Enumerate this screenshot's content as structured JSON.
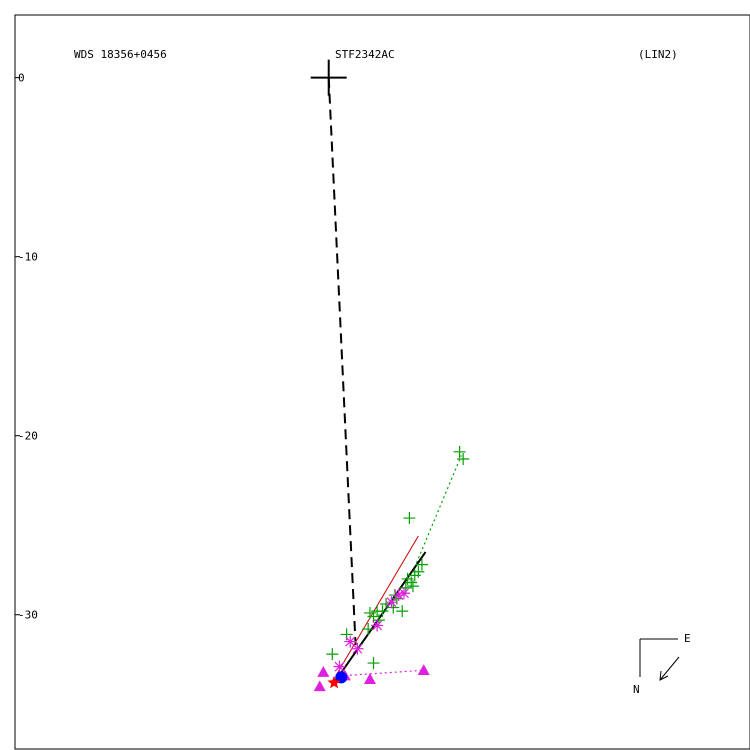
{
  "header": {
    "left": "WDS 18356+0456",
    "center": "STF2342AC",
    "right": "(LIN2)"
  },
  "compass": {
    "east": "E",
    "north": "N"
  },
  "colors": {
    "axis": "#000000",
    "measurements": "#00a000",
    "interferometric": "#e020e0",
    "fit_line": "#d00000",
    "primary_marker": "#0000ff",
    "origin_star": "#ff0000"
  },
  "chart_data": {
    "type": "scatter",
    "ylim": [
      -37.5,
      3.5
    ],
    "xlim": [
      -17.5,
      23.5
    ],
    "yticks": [
      {
        "value": 0,
        "label": "0"
      },
      {
        "value": -10,
        "label": "-10"
      },
      {
        "value": -20,
        "label": "-20"
      },
      {
        "value": -30,
        "label": "-30"
      }
    ],
    "primary_cross": {
      "x": 0.0,
      "y": 0.0
    },
    "dashed_connector": {
      "from": [
        0.0,
        0.0
      ],
      "to": [
        1.5,
        -31.7
      ]
    },
    "fit_line_black": {
      "from": [
        0.3,
        -33.8
      ],
      "to": [
        5.4,
        -26.5
      ]
    },
    "fit_line_red": {
      "from": [
        0.4,
        -33.4
      ],
      "to": [
        5.0,
        -25.6
      ]
    },
    "origin_star": {
      "x": 0.3,
      "y": -33.8
    },
    "primary_dot": {
      "x": 0.7,
      "y": -33.5
    },
    "measurements_plus": [
      [
        1.0,
        -31.1
      ],
      [
        2.2,
        -30.8
      ],
      [
        2.8,
        -30.3
      ],
      [
        2.5,
        -30.1
      ],
      [
        3.0,
        -29.8
      ],
      [
        3.6,
        -29.6
      ],
      [
        2.7,
        -29.8
      ],
      [
        3.2,
        -29.4
      ],
      [
        3.8,
        -29.1
      ],
      [
        4.3,
        -28.5
      ],
      [
        4.6,
        -28.2
      ],
      [
        4.4,
        -28.0
      ],
      [
        4.8,
        -27.8
      ],
      [
        5.0,
        -27.6
      ],
      [
        4.7,
        -28.4
      ],
      [
        4.1,
        -29.8
      ],
      [
        2.3,
        -29.9
      ],
      [
        3.7,
        -28.9
      ],
      [
        5.2,
        -27.2
      ],
      [
        4.5,
        -24.6
      ],
      [
        7.3,
        -20.9
      ],
      [
        7.5,
        -21.3
      ],
      [
        2.5,
        -32.7
      ],
      [
        0.2,
        -32.2
      ]
    ],
    "measurements_dotted_path": [
      [
        4.9,
        -27.1
      ],
      [
        7.4,
        -21.1
      ]
    ],
    "interferometric_asterisk": [
      [
        1.2,
        -31.5
      ],
      [
        1.6,
        -31.9
      ],
      [
        2.7,
        -30.6
      ],
      [
        3.5,
        -29.3
      ],
      [
        3.9,
        -28.9
      ],
      [
        4.2,
        -28.8
      ],
      [
        0.6,
        -32.9
      ]
    ],
    "rejected_triangles": [
      [
        -0.3,
        -33.2
      ],
      [
        -0.5,
        -34.0
      ],
      [
        2.3,
        -33.6
      ],
      [
        5.3,
        -33.1
      ],
      [
        0.9,
        -33.4
      ]
    ],
    "triangles_dotted_path": [
      [
        0.9,
        -33.4
      ],
      [
        5.3,
        -33.1
      ]
    ]
  }
}
